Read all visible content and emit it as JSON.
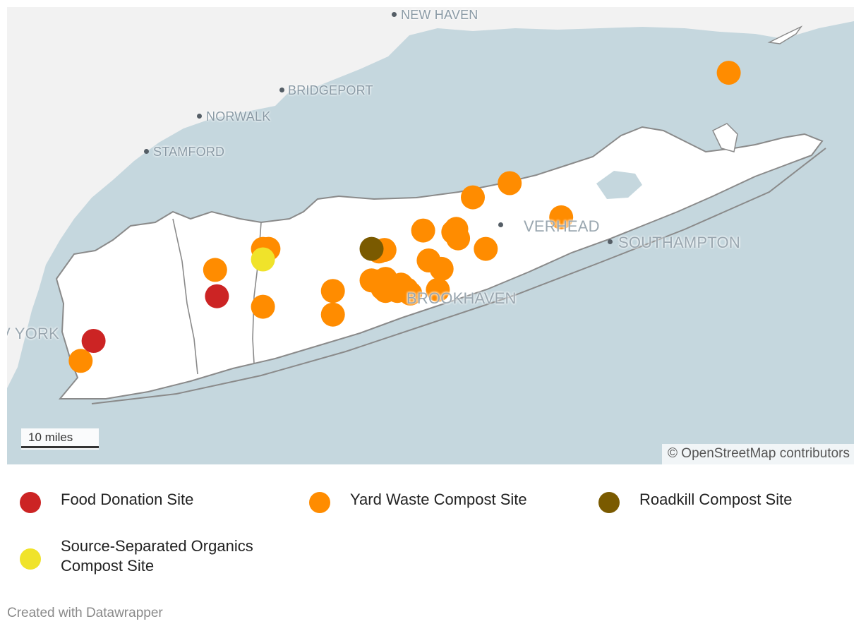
{
  "map": {
    "labels": {
      "new_haven": "NEW HAVEN",
      "bridgeport": "BRIDGEPORT",
      "norwalk": "NORWALK",
      "stamford": "STAMFORD",
      "new_york": "V YORK",
      "riverhead": "VERHEAD",
      "southampton": "SOUTHAMPTON",
      "brookhaven": "BROOKHAVEN"
    },
    "scale": "10 miles",
    "attribution": "© OpenStreetMap contributors",
    "colors": {
      "water": "#c5d7de",
      "land": "#f2f2f2",
      "long_island": "#ffffff",
      "border": "#777777"
    }
  },
  "markers": [
    {
      "type": "food",
      "lat": 40.705,
      "lon": -73.645
    },
    {
      "type": "food",
      "lat": 40.79,
      "lon": -73.31
    },
    {
      "type": "yard",
      "lat": 40.667,
      "lon": -73.68
    },
    {
      "type": "yard",
      "lat": 40.84,
      "lon": -73.315
    },
    {
      "type": "yard",
      "lat": 40.88,
      "lon": -73.185
    },
    {
      "type": "yard",
      "lat": 40.77,
      "lon": -73.185
    },
    {
      "type": "yard",
      "lat": 40.88,
      "lon": -73.17
    },
    {
      "type": "yard",
      "lat": 40.8,
      "lon": -72.995
    },
    {
      "type": "yard",
      "lat": 40.755,
      "lon": -72.995
    },
    {
      "type": "yard",
      "lat": 40.82,
      "lon": -72.89
    },
    {
      "type": "yard",
      "lat": 40.818,
      "lon": -72.875
    },
    {
      "type": "yard",
      "lat": 40.805,
      "lon": -72.86
    },
    {
      "type": "yard",
      "lat": 40.8,
      "lon": -72.852
    },
    {
      "type": "yard",
      "lat": 40.823,
      "lon": -72.852
    },
    {
      "type": "yard",
      "lat": 40.808,
      "lon": -72.84
    },
    {
      "type": "yard",
      "lat": 40.8,
      "lon": -72.82
    },
    {
      "type": "yard",
      "lat": 40.812,
      "lon": -72.81
    },
    {
      "type": "yard",
      "lat": 40.803,
      "lon": -72.795
    },
    {
      "type": "yard",
      "lat": 40.795,
      "lon": -72.785
    },
    {
      "type": "yard",
      "lat": 40.875,
      "lon": -72.87
    },
    {
      "type": "yard",
      "lat": 40.878,
      "lon": -72.855
    },
    {
      "type": "yard",
      "lat": 40.858,
      "lon": -72.735
    },
    {
      "type": "yard",
      "lat": 40.842,
      "lon": -72.7
    },
    {
      "type": "yard",
      "lat": 40.802,
      "lon": -72.71
    },
    {
      "type": "yard",
      "lat": 40.915,
      "lon": -72.75
    },
    {
      "type": "yard",
      "lat": 40.912,
      "lon": -72.668
    },
    {
      "type": "yard",
      "lat": 40.918,
      "lon": -72.66
    },
    {
      "type": "yard",
      "lat": 40.908,
      "lon": -72.662
    },
    {
      "type": "yard",
      "lat": 40.978,
      "lon": -72.615
    },
    {
      "type": "yard",
      "lat": 40.88,
      "lon": -72.58
    },
    {
      "type": "yard",
      "lat": 41.005,
      "lon": -72.515
    },
    {
      "type": "yard",
      "lat": 40.94,
      "lon": -72.375
    },
    {
      "type": "yard",
      "lat": 40.9,
      "lon": -72.655
    },
    {
      "type": "yard",
      "lat": 41.215,
      "lon": -71.92
    },
    {
      "type": "roadkill",
      "lat": 40.88,
      "lon": -72.89
    },
    {
      "type": "ssocs",
      "lat": 40.86,
      "lon": -73.185
    }
  ],
  "legend": {
    "food": {
      "label": "Food Donation Site",
      "color": "#cc2424"
    },
    "yard": {
      "label": "Yard Waste Compost Site",
      "color": "#ff8c00"
    },
    "roadkill": {
      "label": "Roadkill Compost Site",
      "color": "#7a5a00"
    },
    "ssocs": {
      "label_line1": "Source-Separated Organics",
      "label_line2": "Compost Site",
      "color": "#f0e32a"
    }
  },
  "footer": {
    "credit": "Created with Datawrapper"
  }
}
